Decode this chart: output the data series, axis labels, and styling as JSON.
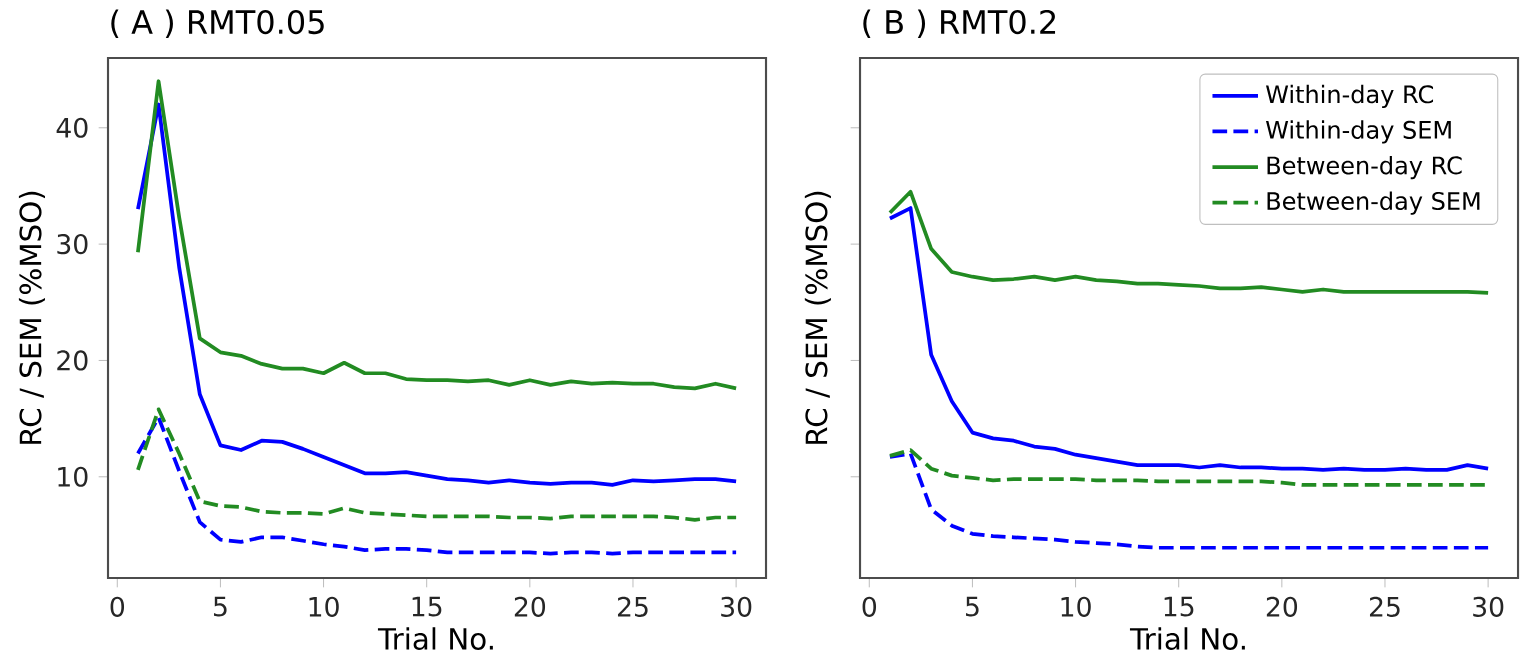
{
  "chart_data": [
    {
      "type": "line",
      "title": "( A ) RMT0.05",
      "xlabel": "Trial No.",
      "ylabel": "RC / SEM (%MSO)",
      "x": [
        1,
        2,
        3,
        4,
        5,
        6,
        7,
        8,
        9,
        10,
        11,
        12,
        13,
        14,
        15,
        16,
        17,
        18,
        19,
        20,
        21,
        22,
        23,
        24,
        25,
        26,
        27,
        28,
        29,
        30
      ],
      "xlim": [
        -0.45,
        31.45
      ],
      "xticks": [
        0,
        5,
        10,
        15,
        20,
        25,
        30
      ],
      "ylim": [
        1.3,
        46.0
      ],
      "yticks": [
        10,
        20,
        30,
        40
      ],
      "grid": false,
      "legend": false,
      "marker": "none",
      "series": [
        {
          "color": "#0000ff",
          "line_style": "solid",
          "values": [
            33.0,
            42.0,
            28.0,
            17.1,
            12.7,
            12.3,
            13.1,
            13.0,
            12.4,
            11.7,
            11.0,
            10.3,
            10.3,
            10.4,
            10.1,
            9.8,
            9.7,
            9.5,
            9.7,
            9.5,
            9.4,
            9.5,
            9.5,
            9.3,
            9.7,
            9.6,
            9.7,
            9.8,
            9.8,
            9.6
          ]
        },
        {
          "color": "#0000ff",
          "line_style": "dashed",
          "values": [
            12.0,
            15.1,
            10.5,
            6.1,
            4.6,
            4.4,
            4.8,
            4.8,
            4.5,
            4.2,
            4.0,
            3.7,
            3.8,
            3.8,
            3.7,
            3.5,
            3.5,
            3.5,
            3.5,
            3.5,
            3.4,
            3.5,
            3.5,
            3.4,
            3.5,
            3.5,
            3.5,
            3.5,
            3.5,
            3.5
          ]
        },
        {
          "color": "#228b22",
          "line_style": "solid",
          "values": [
            29.3,
            44.0,
            32.3,
            21.9,
            20.7,
            20.4,
            19.7,
            19.3,
            19.3,
            18.9,
            19.8,
            18.9,
            18.9,
            18.4,
            18.3,
            18.3,
            18.2,
            18.3,
            17.9,
            18.3,
            17.9,
            18.2,
            18.0,
            18.1,
            18.0,
            18.0,
            17.7,
            17.6,
            18.0,
            17.6
          ]
        },
        {
          "color": "#228b22",
          "line_style": "dashed",
          "values": [
            10.6,
            15.8,
            12.0,
            7.9,
            7.5,
            7.4,
            7.0,
            6.9,
            6.9,
            6.8,
            7.3,
            6.9,
            6.8,
            6.7,
            6.6,
            6.6,
            6.6,
            6.6,
            6.5,
            6.5,
            6.4,
            6.6,
            6.6,
            6.6,
            6.6,
            6.6,
            6.5,
            6.3,
            6.5,
            6.5
          ]
        }
      ]
    },
    {
      "type": "line",
      "title": "( B ) RMT0.2",
      "xlabel": "Trial No.",
      "ylabel": "RC / SEM (%MSO)",
      "x": [
        1,
        2,
        3,
        4,
        5,
        6,
        7,
        8,
        9,
        10,
        11,
        12,
        13,
        14,
        15,
        16,
        17,
        18,
        19,
        20,
        21,
        22,
        23,
        24,
        25,
        26,
        27,
        28,
        29,
        30
      ],
      "xlim": [
        -0.45,
        31.45
      ],
      "xticks": [
        0,
        5,
        10,
        15,
        20,
        25,
        30
      ],
      "ylim": [
        1.3,
        46.0
      ],
      "yticks": [
        10,
        20,
        30,
        40
      ],
      "tick_labels": "x",
      "grid": false,
      "legend": "top right",
      "marker": "none",
      "series": [
        {
          "name": "Within-day RC",
          "color": "#0000ff",
          "line_style": "solid",
          "values": [
            32.2,
            33.1,
            20.5,
            16.5,
            13.8,
            13.3,
            13.1,
            12.6,
            12.4,
            11.9,
            11.6,
            11.3,
            11.0,
            11.0,
            11.0,
            10.8,
            11.0,
            10.8,
            10.8,
            10.7,
            10.7,
            10.6,
            10.7,
            10.6,
            10.6,
            10.7,
            10.6,
            10.6,
            11.0,
            10.7
          ]
        },
        {
          "name": "Within-day SEM",
          "color": "#0000ff",
          "line_style": "dashed",
          "values": [
            11.7,
            12.0,
            7.2,
            5.8,
            5.1,
            4.9,
            4.8,
            4.7,
            4.6,
            4.4,
            4.3,
            4.2,
            4.0,
            3.9,
            3.9,
            3.9,
            3.9,
            3.9,
            3.9,
            3.9,
            3.9,
            3.9,
            3.9,
            3.9,
            3.9,
            3.9,
            3.9,
            3.9,
            3.9,
            3.9
          ]
        },
        {
          "name": "Between-day RC",
          "color": "#228b22",
          "line_style": "solid",
          "values": [
            32.7,
            34.5,
            29.6,
            27.6,
            27.2,
            26.9,
            27.0,
            27.2,
            26.9,
            27.2,
            26.9,
            26.8,
            26.6,
            26.6,
            26.5,
            26.4,
            26.2,
            26.2,
            26.3,
            26.1,
            25.9,
            26.1,
            25.9,
            25.9,
            25.9,
            25.9,
            25.9,
            25.9,
            25.9,
            25.8
          ]
        },
        {
          "name": "Between-day SEM",
          "color": "#228b22",
          "line_style": "dashed",
          "values": [
            11.8,
            12.3,
            10.7,
            10.1,
            9.9,
            9.7,
            9.8,
            9.8,
            9.8,
            9.8,
            9.7,
            9.7,
            9.7,
            9.6,
            9.6,
            9.6,
            9.6,
            9.6,
            9.6,
            9.5,
            9.3,
            9.3,
            9.3,
            9.3,
            9.3,
            9.3,
            9.3,
            9.3,
            9.3,
            9.3
          ]
        }
      ]
    }
  ]
}
